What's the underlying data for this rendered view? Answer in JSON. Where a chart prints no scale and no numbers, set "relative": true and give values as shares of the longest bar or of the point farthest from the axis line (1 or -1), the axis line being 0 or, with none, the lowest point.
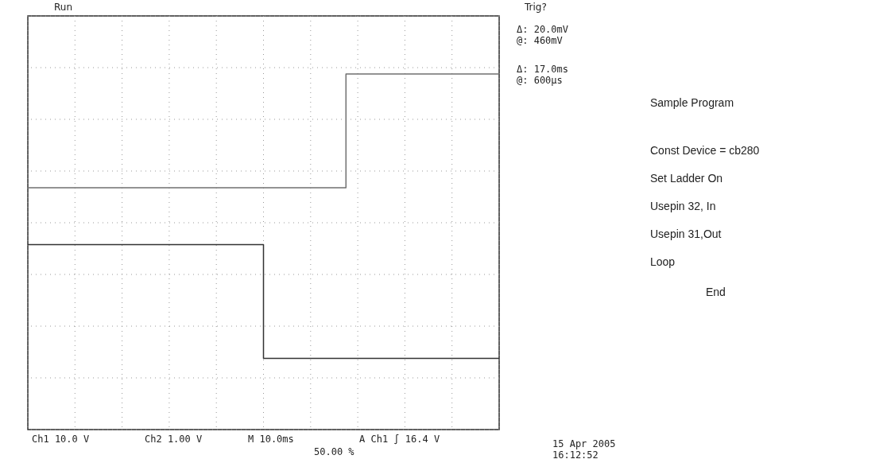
{
  "chart_data": {
    "type": "step",
    "relative": true,
    "grid": true,
    "categories": [
      null,
      null,
      null,
      null,
      null,
      null,
      null,
      null,
      null,
      null,
      null,
      null,
      null,
      null,
      null,
      null,
      null,
      null,
      null,
      null,
      null,
      null,
      null,
      null,
      null,
      null,
      null,
      null,
      null,
      null,
      null,
      null,
      null,
      null,
      null,
      null,
      null,
      null,
      null,
      null,
      null
    ],
    "series": [
      {
        "color": "#333333",
        "values": [
          0.52,
          0.52,
          0.52,
          0.52,
          0.52,
          0.52,
          0.52,
          0.52,
          0.52,
          0.52,
          0.52,
          0.52,
          0.52,
          0.52,
          0.52,
          0.52,
          0.52,
          0.52,
          0.52,
          0.52,
          0.2,
          0.2,
          0.2,
          0.2,
          0.2,
          0.2,
          0.2,
          0.2,
          0.2,
          0.2,
          0.2,
          0.2,
          0.2,
          0.2,
          0.2,
          0.2,
          0.2,
          0.2,
          0.2,
          0.2,
          0.2
        ]
      },
      {
        "color": "#707070",
        "values": [
          0.68,
          0.68,
          0.68,
          0.68,
          0.68,
          0.68,
          0.68,
          0.68,
          0.68,
          0.68,
          0.68,
          0.68,
          0.68,
          0.68,
          0.68,
          0.68,
          0.68,
          0.68,
          0.68,
          0.68,
          0.68,
          0.68,
          0.68,
          0.68,
          0.68,
          0.68,
          0.68,
          1,
          1,
          1,
          1,
          1,
          1,
          1,
          1,
          1,
          1,
          1,
          1,
          1,
          1
        ]
      }
    ],
    "annotations": [
      "Run",
      "Trig?",
      "Δ: 20.0mV",
      "@: 460mV",
      "Δ: 17.0ms",
      "@: 600µs",
      "Ch1 10.0 V",
      "Ch2 1.00 V",
      "M 10.0ms",
      "A Ch1 ∫ 16.4 V",
      "50.00 %",
      "15 Apr 2005",
      "16:12:52",
      "Sample Program",
      "Const Device = cb280",
      "Set Ladder On",
      "Usepin 32, In",
      "Usepin 31,Out",
      "Loop",
      "End"
    ]
  }
}
